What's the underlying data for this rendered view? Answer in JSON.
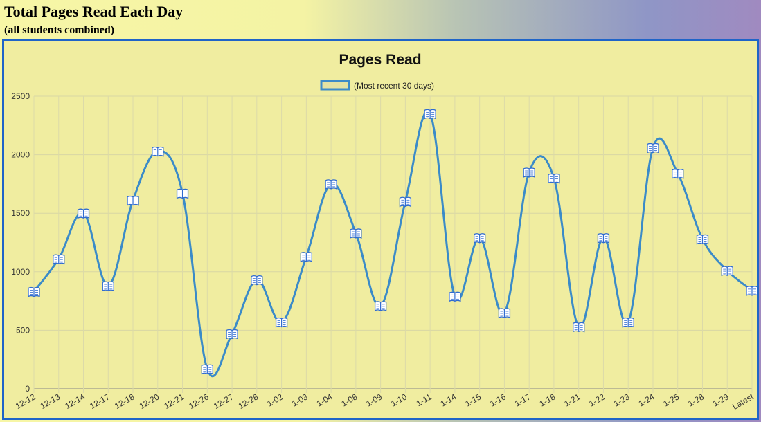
{
  "page": {
    "title": "Total Pages Read Each Day",
    "subtitle": "(all students combined)"
  },
  "colors": {
    "line": "#3b8bc8",
    "marker": "#2f6bd0",
    "plot_bg": "#f0eda0",
    "border": "#1f64c8"
  },
  "marker_icon": "book-icon",
  "chart_data": {
    "type": "line",
    "title": "Pages Read",
    "legend": {
      "position": "top",
      "entries": [
        "(Most recent 30 days)"
      ]
    },
    "xlabel": "",
    "ylabel": "",
    "ylim": [
      0,
      2500
    ],
    "yticks": [
      0,
      500,
      1000,
      1500,
      2000,
      2500
    ],
    "grid": true,
    "curve": "smooth",
    "categories": [
      "12-12",
      "12-13",
      "12-14",
      "12-17",
      "12-18",
      "12-20",
      "12-21",
      "12-26",
      "12-27",
      "12-28",
      "1-02",
      "1-03",
      "1-04",
      "1-08",
      "1-09",
      "1-10",
      "1-11",
      "1-14",
      "1-15",
      "1-16",
      "1-17",
      "1-18",
      "1-21",
      "1-22",
      "1-23",
      "1-24",
      "1-25",
      "1-28",
      "1-29",
      "Latest"
    ],
    "series": [
      {
        "name": "(Most recent 30 days)",
        "values": [
          830,
          1110,
          1500,
          880,
          1610,
          2030,
          1670,
          170,
          470,
          930,
          570,
          1130,
          1750,
          1330,
          710,
          1600,
          2350,
          790,
          1290,
          650,
          1850,
          1800,
          530,
          1290,
          570,
          2060,
          1840,
          1280,
          1010,
          840
        ]
      }
    ]
  }
}
